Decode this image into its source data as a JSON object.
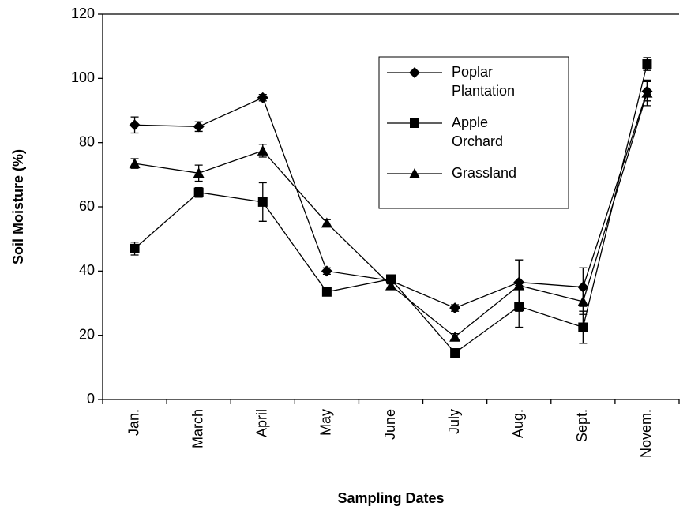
{
  "chart_data": {
    "type": "line",
    "x_label": "Sampling Dates",
    "y_label": "Soil Moisture (%)",
    "categories": [
      "Jan.",
      "March",
      "April",
      "May",
      "June",
      "July",
      "Aug.",
      "Sept.",
      "Novem."
    ],
    "ylim": [
      0,
      120
    ],
    "yticks": [
      0,
      20,
      40,
      60,
      80,
      100,
      120
    ],
    "legend": "upper right",
    "series": [
      {
        "name": "Poplar Plantation",
        "color": "#000000",
        "marker": "diamond",
        "values": [
          85.5,
          85,
          94,
          40,
          37,
          28.5,
          36.5,
          35,
          96
        ],
        "errors": [
          2.5,
          1.5,
          1,
          1,
          1,
          1,
          7,
          6,
          3
        ]
      },
      {
        "name": "Apple Orchard",
        "color": "#000000",
        "marker": "square",
        "values": [
          47,
          64.5,
          61.5,
          33.5,
          37.5,
          14.5,
          29,
          22.5,
          104.5
        ],
        "errors": [
          2,
          1.5,
          6,
          1,
          1,
          1,
          6.5,
          5,
          2
        ]
      },
      {
        "name": "Grassland",
        "color": "#000000",
        "marker": "triangle",
        "values": [
          73.5,
          70.5,
          77.5,
          55,
          35.5,
          19.5,
          35.5,
          30.5,
          95.5
        ],
        "errors": [
          1.5,
          2.5,
          2,
          1,
          1,
          1,
          8,
          4,
          4
        ]
      }
    ]
  }
}
